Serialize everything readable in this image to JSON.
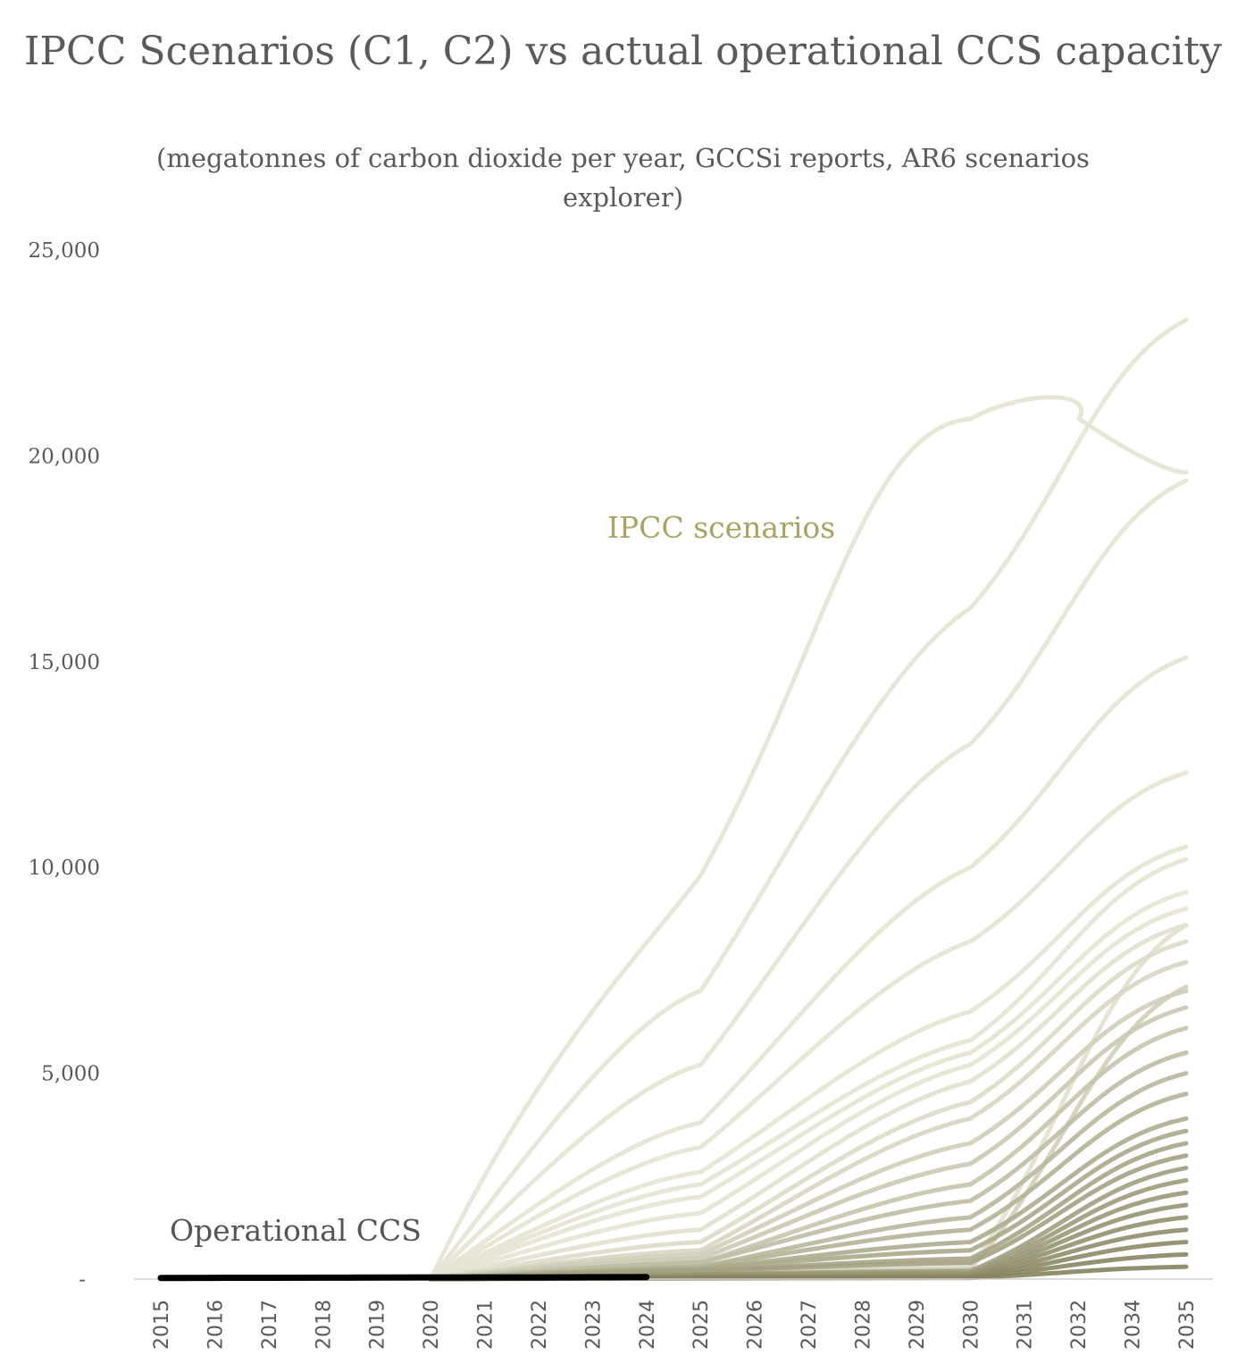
{
  "chart_data": {
    "type": "line",
    "title": "IPCC Scenarios (C1, C2) vs actual operational CCS capacity",
    "subtitle": "(megatonnes of carbon dioxide per year, GCCSi reports, AR6 scenarios explorer)",
    "xlabel": "",
    "ylabel": "",
    "categories": [
      "2015",
      "2016",
      "2017",
      "2018",
      "2019",
      "2020",
      "2021",
      "2022",
      "2023",
      "2024",
      "2025",
      "2026",
      "2027",
      "2028",
      "2029",
      "2030",
      "2031",
      "2032",
      "2034",
      "2035"
    ],
    "y_ticks": [
      "-",
      "5,000",
      "10,000",
      "15,000",
      "20,000",
      "25,000"
    ],
    "ylim": [
      0,
      25000
    ],
    "grid": false,
    "annotations": {
      "ipcc_label": "IPCC scenarios",
      "operational_label": "Operational CCS"
    },
    "colors": {
      "ipcc_label": "#a8a464",
      "operational": "#000000",
      "scenario_light": "#e6e4d3",
      "scenario_dark": "#7d7a55"
    },
    "operational_series": {
      "x": [
        "2015",
        "2016",
        "2017",
        "2018",
        "2019",
        "2020",
        "2021",
        "2022",
        "2023",
        "2024"
      ],
      "values": [
        28,
        31,
        33,
        36,
        37,
        40,
        40,
        42,
        45,
        50
      ]
    },
    "scenarios": [
      {
        "y2020": 0,
        "y2025": 9800,
        "y2030": 20900,
        "y2035": 19600,
        "shape": "hump"
      },
      {
        "y2020": 0,
        "y2025": 7000,
        "y2030": 16300,
        "y2035": 23300
      },
      {
        "y2020": 0,
        "y2025": 5200,
        "y2030": 13000,
        "y2035": 19400
      },
      {
        "y2020": 0,
        "y2025": 3800,
        "y2030": 10000,
        "y2035": 15100
      },
      {
        "y2020": 0,
        "y2025": 3200,
        "y2030": 8200,
        "y2035": 12300
      },
      {
        "y2020": 0,
        "y2025": 2600,
        "y2030": 6500,
        "y2035": 10500
      },
      {
        "y2020": 0,
        "y2025": 2300,
        "y2030": 5800,
        "y2035": 10200
      },
      {
        "y2020": 0,
        "y2025": 2000,
        "y2030": 5500,
        "y2035": 9400
      },
      {
        "y2020": 0,
        "y2025": 1600,
        "y2030": 5200,
        "y2035": 9000
      },
      {
        "y2020": 0,
        "y2025": 1200,
        "y2030": 4800,
        "y2035": 8600
      },
      {
        "y2020": 0,
        "y2025": 900,
        "y2030": 4300,
        "y2035": 8200
      },
      {
        "y2020": 0,
        "y2025": 700,
        "y2030": 3900,
        "y2035": 7700
      },
      {
        "y2020": 0,
        "y2025": 600,
        "y2030": 3300,
        "y2035": 7000
      },
      {
        "y2020": 0,
        "y2025": 500,
        "y2030": 2800,
        "y2035": 6600
      },
      {
        "y2020": 0,
        "y2025": 400,
        "y2030": 2300,
        "y2035": 6100
      },
      {
        "y2020": 0,
        "y2025": 400,
        "y2030": 1900,
        "y2035": 5500
      },
      {
        "y2020": 0,
        "y2025": 300,
        "y2030": 1500,
        "y2035": 5000
      },
      {
        "y2020": 0,
        "y2025": 300,
        "y2030": 1200,
        "y2035": 4500
      },
      {
        "y2020": 0,
        "y2025": 250,
        "y2030": 900,
        "y2035": 3900
      },
      {
        "y2020": 0,
        "y2025": 250,
        "y2030": 700,
        "y2035": 3600
      },
      {
        "y2020": 0,
        "y2025": 200,
        "y2030": 500,
        "y2035": 3300
      },
      {
        "y2020": 0,
        "y2025": 200,
        "y2030": 400,
        "y2035": 3000
      },
      {
        "y2020": 0,
        "y2025": 150,
        "y2030": 300,
        "y2035": 8600
      },
      {
        "y2020": 0,
        "y2025": 150,
        "y2030": 250,
        "y2035": 7100
      },
      {
        "y2020": 0,
        "y2025": 120,
        "y2030": 200,
        "y2035": 2700
      },
      {
        "y2020": 0,
        "y2025": 100,
        "y2030": 150,
        "y2035": 2400
      },
      {
        "y2020": 0,
        "y2025": 100,
        "y2030": 120,
        "y2035": 2100
      },
      {
        "y2020": 0,
        "y2025": 80,
        "y2030": 100,
        "y2035": 1800
      },
      {
        "y2020": 0,
        "y2025": 60,
        "y2030": 80,
        "y2035": 1500
      },
      {
        "y2020": 0,
        "y2025": 50,
        "y2030": 60,
        "y2035": 1200
      },
      {
        "y2020": 0,
        "y2025": 40,
        "y2030": 50,
        "y2035": 900
      },
      {
        "y2020": 0,
        "y2025": 30,
        "y2030": 40,
        "y2035": 600
      },
      {
        "y2020": 0,
        "y2025": 20,
        "y2030": 30,
        "y2035": 300
      }
    ]
  }
}
